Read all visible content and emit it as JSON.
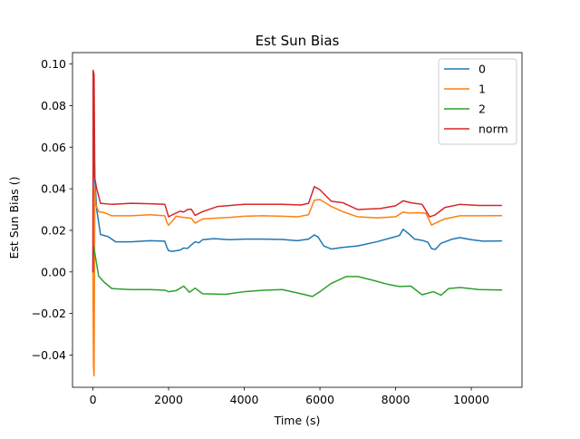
{
  "chart_data": {
    "type": "line",
    "title": "Est Sun Bias",
    "xlabel": "Time (s)",
    "ylabel": "Est Sun Bias ()",
    "xlim": [
      -540,
      11340
    ],
    "ylim": [
      -0.0555,
      0.1055
    ],
    "xticks": [
      0,
      2000,
      4000,
      6000,
      8000,
      10000
    ],
    "xtick_labels": [
      "0",
      "2000",
      "4000",
      "6000",
      "8000",
      "10000"
    ],
    "yticks": [
      -0.04,
      -0.02,
      0.0,
      0.02,
      0.04,
      0.06,
      0.08,
      0.1
    ],
    "ytick_labels": [
      "−0.04",
      "−0.02",
      "0.00",
      "0.02",
      "0.04",
      "0.06",
      "0.08",
      "0.10"
    ],
    "grid": false,
    "legend_position": "top-right",
    "series": [
      {
        "name": "0",
        "color": "#1f77b4",
        "points": [
          [
            0,
            0.0
          ],
          [
            20,
            0.075
          ],
          [
            50,
            0.045
          ],
          [
            100,
            0.03
          ],
          [
            200,
            0.018
          ],
          [
            400,
            0.017
          ],
          [
            600,
            0.0145
          ],
          [
            1000,
            0.0145
          ],
          [
            1500,
            0.015
          ],
          [
            1900,
            0.0148
          ],
          [
            1950,
            0.012
          ],
          [
            2000,
            0.0102
          ],
          [
            2100,
            0.0099
          ],
          [
            2300,
            0.0105
          ],
          [
            2400,
            0.0115
          ],
          [
            2500,
            0.0113
          ],
          [
            2600,
            0.013
          ],
          [
            2700,
            0.0145
          ],
          [
            2800,
            0.014
          ],
          [
            2900,
            0.0155
          ],
          [
            3200,
            0.016
          ],
          [
            3600,
            0.0155
          ],
          [
            4000,
            0.0158
          ],
          [
            4500,
            0.0158
          ],
          [
            5000,
            0.0156
          ],
          [
            5400,
            0.015
          ],
          [
            5700,
            0.0158
          ],
          [
            5850,
            0.0178
          ],
          [
            5950,
            0.0168
          ],
          [
            6100,
            0.0125
          ],
          [
            6300,
            0.011
          ],
          [
            6600,
            0.0118
          ],
          [
            7000,
            0.0125
          ],
          [
            7500,
            0.0145
          ],
          [
            7900,
            0.0165
          ],
          [
            8100,
            0.0175
          ],
          [
            8200,
            0.0205
          ],
          [
            8350,
            0.0183
          ],
          [
            8500,
            0.0158
          ],
          [
            8700,
            0.0152
          ],
          [
            8850,
            0.0143
          ],
          [
            8950,
            0.0112
          ],
          [
            9050,
            0.0108
          ],
          [
            9200,
            0.0138
          ],
          [
            9500,
            0.0158
          ],
          [
            9700,
            0.0165
          ],
          [
            10000,
            0.0155
          ],
          [
            10300,
            0.0148
          ],
          [
            10800,
            0.0149
          ]
        ]
      },
      {
        "name": "1",
        "color": "#ff7f0e",
        "points": [
          [
            0,
            0.0
          ],
          [
            15,
            -0.045
          ],
          [
            30,
            -0.05
          ],
          [
            50,
            0.04
          ],
          [
            80,
            0.032
          ],
          [
            150,
            0.029
          ],
          [
            300,
            0.0285
          ],
          [
            500,
            0.027
          ],
          [
            1000,
            0.027
          ],
          [
            1500,
            0.0275
          ],
          [
            1900,
            0.027
          ],
          [
            1950,
            0.024
          ],
          [
            2000,
            0.0225
          ],
          [
            2100,
            0.0245
          ],
          [
            2200,
            0.0268
          ],
          [
            2400,
            0.0262
          ],
          [
            2600,
            0.0258
          ],
          [
            2700,
            0.0235
          ],
          [
            2800,
            0.0245
          ],
          [
            2900,
            0.0255
          ],
          [
            3200,
            0.0258
          ],
          [
            3600,
            0.0262
          ],
          [
            4000,
            0.0268
          ],
          [
            4500,
            0.027
          ],
          [
            5000,
            0.0268
          ],
          [
            5400,
            0.0265
          ],
          [
            5700,
            0.0275
          ],
          [
            5850,
            0.0345
          ],
          [
            6000,
            0.0348
          ],
          [
            6300,
            0.0315
          ],
          [
            6600,
            0.029
          ],
          [
            7000,
            0.0265
          ],
          [
            7500,
            0.026
          ],
          [
            8000,
            0.0265
          ],
          [
            8200,
            0.0288
          ],
          [
            8350,
            0.0283
          ],
          [
            8600,
            0.0285
          ],
          [
            8800,
            0.0282
          ],
          [
            8950,
            0.0225
          ],
          [
            9050,
            0.0235
          ],
          [
            9300,
            0.0255
          ],
          [
            9700,
            0.027
          ],
          [
            10200,
            0.027
          ],
          [
            10800,
            0.0271
          ]
        ]
      },
      {
        "name": "2",
        "color": "#2ca02c",
        "points": [
          [
            0,
            0.0
          ],
          [
            20,
            0.012
          ],
          [
            60,
            0.008
          ],
          [
            150,
            -0.002
          ],
          [
            300,
            -0.005
          ],
          [
            500,
            -0.008
          ],
          [
            1000,
            -0.0085
          ],
          [
            1500,
            -0.0085
          ],
          [
            1900,
            -0.0088
          ],
          [
            2000,
            -0.0095
          ],
          [
            2200,
            -0.009
          ],
          [
            2400,
            -0.0068
          ],
          [
            2550,
            -0.0098
          ],
          [
            2700,
            -0.0078
          ],
          [
            2900,
            -0.0105
          ],
          [
            3500,
            -0.0108
          ],
          [
            4000,
            -0.0095
          ],
          [
            4500,
            -0.0088
          ],
          [
            5000,
            -0.0085
          ],
          [
            5500,
            -0.0105
          ],
          [
            5800,
            -0.0118
          ],
          [
            6000,
            -0.0095
          ],
          [
            6300,
            -0.0055
          ],
          [
            6700,
            -0.0022
          ],
          [
            7000,
            -0.0022
          ],
          [
            7400,
            -0.004
          ],
          [
            7800,
            -0.006
          ],
          [
            8100,
            -0.007
          ],
          [
            8400,
            -0.0068
          ],
          [
            8700,
            -0.011
          ],
          [
            9000,
            -0.0095
          ],
          [
            9200,
            -0.0112
          ],
          [
            9400,
            -0.008
          ],
          [
            9700,
            -0.0075
          ],
          [
            10200,
            -0.0085
          ],
          [
            10800,
            -0.0087
          ]
        ]
      },
      {
        "name": "norm",
        "color": "#d62728",
        "points": [
          [
            0,
            0.0
          ],
          [
            5,
            0.097
          ],
          [
            30,
            0.095
          ],
          [
            50,
            0.045
          ],
          [
            100,
            0.04
          ],
          [
            200,
            0.033
          ],
          [
            500,
            0.0325
          ],
          [
            1000,
            0.033
          ],
          [
            1500,
            0.0328
          ],
          [
            1900,
            0.0325
          ],
          [
            2000,
            0.0265
          ],
          [
            2100,
            0.0275
          ],
          [
            2300,
            0.0292
          ],
          [
            2400,
            0.0288
          ],
          [
            2500,
            0.03
          ],
          [
            2600,
            0.0302
          ],
          [
            2700,
            0.0272
          ],
          [
            2900,
            0.029
          ],
          [
            3300,
            0.0315
          ],
          [
            4000,
            0.0325
          ],
          [
            4500,
            0.0325
          ],
          [
            5000,
            0.0325
          ],
          [
            5500,
            0.0322
          ],
          [
            5700,
            0.033
          ],
          [
            5850,
            0.041
          ],
          [
            6000,
            0.0395
          ],
          [
            6300,
            0.034
          ],
          [
            6600,
            0.0333
          ],
          [
            7000,
            0.03
          ],
          [
            7600,
            0.0305
          ],
          [
            8000,
            0.0318
          ],
          [
            8200,
            0.0342
          ],
          [
            8400,
            0.0333
          ],
          [
            8700,
            0.0325
          ],
          [
            8900,
            0.0265
          ],
          [
            9050,
            0.0275
          ],
          [
            9300,
            0.031
          ],
          [
            9700,
            0.0325
          ],
          [
            10200,
            0.032
          ],
          [
            10800,
            0.032
          ]
        ]
      }
    ]
  }
}
